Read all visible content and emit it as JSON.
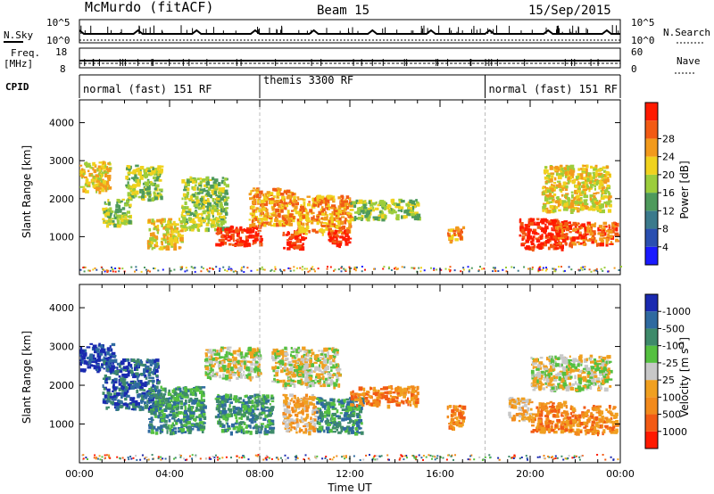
{
  "header": {
    "station": "McMurdo (fitACF)",
    "beam": "Beam 15",
    "date": "15/Sep/2015"
  },
  "summary_panels": {
    "nsky_label": "N.Sky",
    "nsearch_label": "N.Search",
    "freq_label_top": "Freq.",
    "freq_label_unit": "[MHz]",
    "nave_label": "Nave",
    "cpid_label": "CPID",
    "nsky_ticks": [
      "10^5",
      "10^0"
    ],
    "nsearch_ticks": [
      "10^5",
      "10^0"
    ],
    "freq_ticks": [
      "18",
      "8"
    ],
    "nave_ticks": [
      "60",
      "0"
    ]
  },
  "cpid_segments": [
    {
      "label": "normal (fast) 151 RF",
      "start_hour": 0,
      "end_hour": 8
    },
    {
      "label": "themis 3300 RF",
      "start_hour": 8,
      "end_hour": 18
    },
    {
      "label": "normal (fast) 151 RF",
      "start_hour": 18,
      "end_hour": 24
    }
  ],
  "chart_data": [
    {
      "type": "heatmap",
      "name": "power-panel",
      "ylabel": "Slant Range [km]",
      "xlabel": "",
      "xlim": [
        0,
        24
      ],
      "ylim": [
        0,
        4600
      ],
      "y_ticks": [
        1000,
        2000,
        3000,
        4000
      ],
      "colorbar": {
        "label": "Power [dB]",
        "ticks": [
          "4",
          "8",
          "12",
          "16",
          "20",
          "24",
          "28"
        ],
        "colors": [
          "#1a1aff",
          "#2a4fb0",
          "#3b7a8c",
          "#4e9a5c",
          "#9ccd3c",
          "#f0d21e",
          "#f29a1c",
          "#f25a14",
          "#ff1a00"
        ]
      },
      "regions": [
        {
          "t0": 0.0,
          "t1": 1.3,
          "r0": 2200,
          "r1": 3000,
          "level": 5
        },
        {
          "t0": 1.0,
          "t1": 2.2,
          "r0": 1300,
          "r1": 2000,
          "level": 4
        },
        {
          "t0": 2.0,
          "t1": 3.6,
          "r0": 2000,
          "r1": 2900,
          "level": 4
        },
        {
          "t0": 3.0,
          "t1": 4.5,
          "r0": 700,
          "r1": 1500,
          "level": 5
        },
        {
          "t0": 4.5,
          "t1": 6.5,
          "r0": 1200,
          "r1": 2600,
          "level": 4
        },
        {
          "t0": 6.0,
          "t1": 8.0,
          "r0": 800,
          "r1": 1300,
          "level": 8
        },
        {
          "t0": 7.5,
          "t1": 9.5,
          "r0": 1300,
          "r1": 2300,
          "level": 6
        },
        {
          "t0": 9.0,
          "t1": 10.0,
          "r0": 700,
          "r1": 1200,
          "level": 8
        },
        {
          "t0": 9.5,
          "t1": 12.0,
          "r0": 1100,
          "r1": 2100,
          "level": 6
        },
        {
          "t0": 11.0,
          "t1": 12.0,
          "r0": 800,
          "r1": 1200,
          "level": 8
        },
        {
          "t0": 12.0,
          "t1": 15.0,
          "r0": 1500,
          "r1": 2000,
          "level": 4
        },
        {
          "t0": 16.3,
          "t1": 17.0,
          "r0": 900,
          "r1": 1300,
          "level": 6
        },
        {
          "t0": 19.5,
          "t1": 21.5,
          "r0": 700,
          "r1": 1500,
          "level": 8
        },
        {
          "t0": 21.0,
          "t1": 23.8,
          "r0": 800,
          "r1": 1400,
          "level": 7
        },
        {
          "t0": 20.5,
          "t1": 23.5,
          "r0": 1700,
          "r1": 2900,
          "level": 5
        }
      ]
    },
    {
      "type": "heatmap",
      "name": "velocity-panel",
      "ylabel": "Slant Range [km]",
      "xlabel": "Time UT",
      "xlim": [
        0,
        24
      ],
      "ylim": [
        0,
        4600
      ],
      "y_ticks": [
        1000,
        2000,
        3000,
        4000
      ],
      "x_ticks": [
        "00:00",
        "04:00",
        "08:00",
        "12:00",
        "16:00",
        "20:00",
        "00:00"
      ],
      "colorbar": {
        "label": "Velocity [m s^-1]",
        "ticks": [
          "1000",
          "500",
          "100",
          "25",
          "-25",
          "-100",
          "-500",
          "-1000"
        ],
        "colors": [
          "#1a2ab0",
          "#2f6aa0",
          "#3e8a6a",
          "#55c040",
          "#c8c8c8",
          "#f0a020",
          "#f28a1c",
          "#f25a14",
          "#ff1a00"
        ]
      },
      "regions": [
        {
          "t0": 0.0,
          "t1": 1.5,
          "r0": 2400,
          "r1": 3100,
          "level": 0
        },
        {
          "t0": 1.0,
          "t1": 3.5,
          "r0": 1400,
          "r1": 2700,
          "level": 1
        },
        {
          "t0": 3.0,
          "t1": 5.5,
          "r0": 800,
          "r1": 2000,
          "level": 2
        },
        {
          "t0": 5.5,
          "t1": 8.0,
          "r0": 2200,
          "r1": 3000,
          "level": 4
        },
        {
          "t0": 6.0,
          "t1": 8.5,
          "r0": 800,
          "r1": 1800,
          "level": 2
        },
        {
          "t0": 8.5,
          "t1": 11.5,
          "r0": 2000,
          "r1": 3000,
          "level": 4
        },
        {
          "t0": 9.0,
          "t1": 10.5,
          "r0": 800,
          "r1": 1800,
          "level": 5
        },
        {
          "t0": 10.5,
          "t1": 12.5,
          "r0": 800,
          "r1": 1700,
          "level": 2
        },
        {
          "t0": 12.0,
          "t1": 15.0,
          "r0": 1500,
          "r1": 2000,
          "level": 6
        },
        {
          "t0": 16.3,
          "t1": 17.0,
          "r0": 900,
          "r1": 1500,
          "level": 6
        },
        {
          "t0": 19.0,
          "t1": 20.0,
          "r0": 1100,
          "r1": 1700,
          "level": 5
        },
        {
          "t0": 20.0,
          "t1": 21.5,
          "r0": 800,
          "r1": 1600,
          "level": 6
        },
        {
          "t0": 21.5,
          "t1": 23.8,
          "r0": 800,
          "r1": 1500,
          "level": 6
        },
        {
          "t0": 20.0,
          "t1": 23.5,
          "r0": 1900,
          "r1": 2800,
          "level": 4
        }
      ]
    }
  ]
}
